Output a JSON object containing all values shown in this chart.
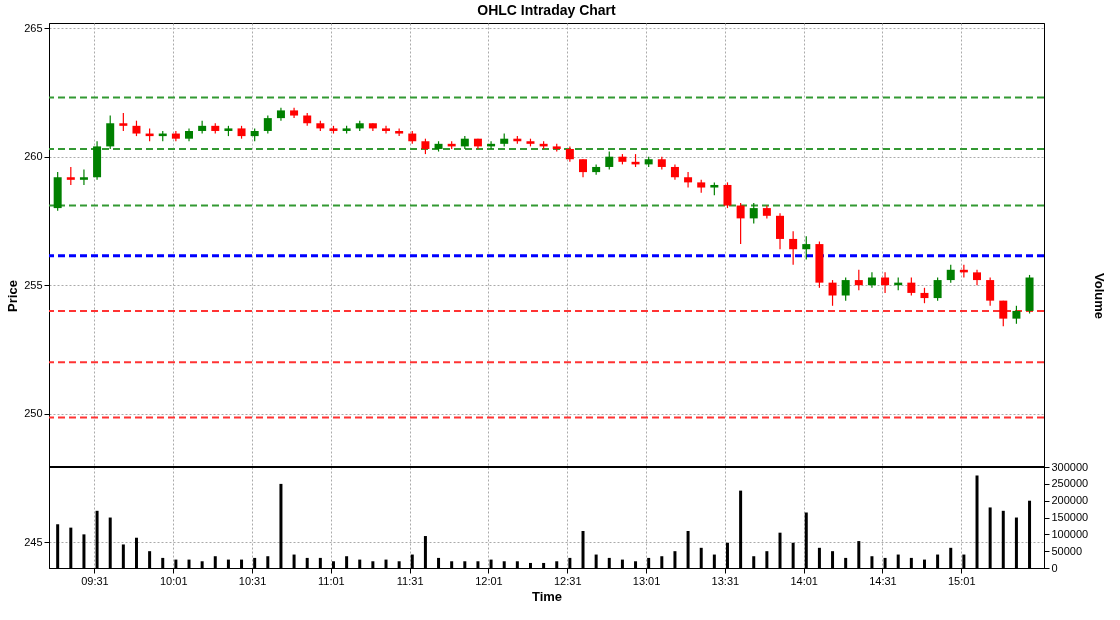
{
  "chart_data": {
    "type": "candlestick",
    "title": "OHLC Intraday Chart",
    "xlabel": "Time",
    "ylabel": "Price",
    "y2label": "Volume",
    "x": [
      9.2833,
      9.3667,
      9.45,
      9.5333,
      9.6167,
      9.7,
      9.7833,
      9.8667,
      9.95,
      10.0333,
      10.1167,
      10.2,
      10.2833,
      10.3667,
      10.45,
      10.5333,
      10.6167,
      10.7,
      10.7833,
      10.8667,
      10.95,
      11.0333,
      11.1167,
      11.2,
      11.2833,
      11.3667,
      11.45,
      11.5333,
      11.6167,
      11.7,
      11.7833,
      11.8667,
      11.95,
      12.0333,
      12.1167,
      12.2,
      12.2833,
      12.3667,
      12.45,
      12.5333,
      12.6167,
      12.7,
      12.7833,
      12.8667,
      12.95,
      13.0333,
      13.1167,
      13.2,
      13.2833,
      13.3667,
      13.45,
      13.5333,
      13.6167,
      13.7,
      13.7833,
      13.8667,
      13.95,
      14.0333,
      14.1167,
      14.2,
      14.2833,
      14.3667,
      14.45,
      14.5333,
      14.6167,
      14.7,
      14.7833,
      14.8667,
      14.95,
      15.0333,
      15.1167,
      15.2,
      15.2833,
      15.3667,
      15.45
    ],
    "ohlc": [
      [
        258.0,
        259.4,
        257.9,
        259.2
      ],
      [
        259.2,
        259.6,
        258.9,
        259.1
      ],
      [
        259.1,
        259.5,
        258.9,
        259.2
      ],
      [
        259.2,
        260.6,
        259.1,
        260.4
      ],
      [
        260.4,
        261.6,
        260.3,
        261.3
      ],
      [
        261.3,
        261.7,
        261.0,
        261.2
      ],
      [
        261.2,
        261.4,
        260.8,
        260.9
      ],
      [
        260.9,
        261.1,
        260.6,
        260.8
      ],
      [
        260.8,
        261.0,
        260.6,
        260.9
      ],
      [
        260.9,
        261.0,
        260.6,
        260.7
      ],
      [
        260.7,
        261.1,
        260.6,
        261.0
      ],
      [
        261.0,
        261.4,
        260.9,
        261.2
      ],
      [
        261.2,
        261.3,
        260.9,
        261.0
      ],
      [
        261.0,
        261.2,
        260.8,
        261.1
      ],
      [
        261.1,
        261.2,
        260.7,
        260.8
      ],
      [
        260.8,
        261.1,
        260.6,
        261.0
      ],
      [
        261.0,
        261.6,
        260.9,
        261.5
      ],
      [
        261.5,
        261.9,
        261.4,
        261.8
      ],
      [
        261.8,
        261.9,
        261.5,
        261.6
      ],
      [
        261.6,
        261.7,
        261.2,
        261.3
      ],
      [
        261.3,
        261.4,
        261.0,
        261.1
      ],
      [
        261.1,
        261.2,
        260.9,
        261.0
      ],
      [
        261.0,
        261.2,
        260.9,
        261.1
      ],
      [
        261.1,
        261.4,
        261.0,
        261.3
      ],
      [
        261.3,
        261.3,
        261.0,
        261.1
      ],
      [
        261.1,
        261.2,
        260.9,
        261.0
      ],
      [
        261.0,
        261.1,
        260.8,
        260.9
      ],
      [
        260.9,
        261.0,
        260.5,
        260.6
      ],
      [
        260.6,
        260.7,
        260.1,
        260.3
      ],
      [
        260.3,
        260.6,
        260.2,
        260.5
      ],
      [
        260.5,
        260.6,
        260.3,
        260.4
      ],
      [
        260.4,
        260.8,
        260.3,
        260.7
      ],
      [
        260.7,
        260.7,
        260.3,
        260.4
      ],
      [
        260.4,
        260.6,
        260.3,
        260.5
      ],
      [
        260.5,
        260.9,
        260.4,
        260.7
      ],
      [
        260.7,
        260.8,
        260.5,
        260.6
      ],
      [
        260.6,
        260.7,
        260.4,
        260.5
      ],
      [
        260.5,
        260.6,
        260.3,
        260.4
      ],
      [
        260.4,
        260.5,
        260.2,
        260.3
      ],
      [
        260.3,
        260.4,
        259.8,
        259.9
      ],
      [
        259.9,
        259.9,
        259.2,
        259.4
      ],
      [
        259.4,
        259.7,
        259.3,
        259.6
      ],
      [
        259.6,
        260.2,
        259.5,
        260.0
      ],
      [
        260.0,
        260.1,
        259.7,
        259.8
      ],
      [
        259.8,
        260.1,
        259.6,
        259.7
      ],
      [
        259.7,
        260.0,
        259.6,
        259.9
      ],
      [
        259.9,
        260.0,
        259.5,
        259.6
      ],
      [
        259.6,
        259.7,
        259.1,
        259.2
      ],
      [
        259.2,
        259.4,
        258.8,
        259.0
      ],
      [
        259.0,
        259.1,
        258.6,
        258.8
      ],
      [
        258.8,
        259.0,
        258.5,
        258.9
      ],
      [
        258.9,
        259.0,
        258.0,
        258.1
      ],
      [
        258.1,
        258.2,
        256.6,
        257.6
      ],
      [
        257.6,
        258.2,
        257.4,
        258.0
      ],
      [
        258.0,
        258.1,
        257.6,
        257.7
      ],
      [
        257.7,
        257.8,
        256.4,
        256.8
      ],
      [
        256.8,
        257.1,
        255.8,
        256.4
      ],
      [
        256.4,
        256.9,
        256.0,
        256.6
      ],
      [
        256.6,
        256.7,
        254.9,
        255.1
      ],
      [
        255.1,
        255.2,
        254.2,
        254.6
      ],
      [
        254.6,
        255.3,
        254.4,
        255.2
      ],
      [
        255.2,
        255.6,
        254.8,
        255.0
      ],
      [
        255.0,
        255.5,
        254.9,
        255.3
      ],
      [
        255.3,
        255.5,
        254.7,
        255.0
      ],
      [
        255.0,
        255.3,
        254.8,
        255.1
      ],
      [
        255.1,
        255.3,
        254.6,
        254.7
      ],
      [
        254.7,
        254.9,
        254.3,
        254.5
      ],
      [
        254.5,
        255.3,
        254.4,
        255.2
      ],
      [
        255.2,
        255.8,
        255.1,
        255.6
      ],
      [
        255.6,
        255.8,
        255.3,
        255.5
      ],
      [
        255.5,
        255.6,
        255.0,
        255.2
      ],
      [
        255.2,
        255.3,
        254.2,
        254.4
      ],
      [
        254.4,
        254.4,
        253.4,
        253.7
      ],
      [
        253.7,
        254.2,
        253.5,
        254.0
      ],
      [
        254.0,
        255.4,
        253.9,
        255.3
      ]
    ],
    "colors": [
      "#008000",
      "#ff0000",
      "#008000",
      "#008000",
      "#008000",
      "#ff0000",
      "#ff0000",
      "#ff0000",
      "#008000",
      "#ff0000",
      "#008000",
      "#008000",
      "#ff0000",
      "#008000",
      "#ff0000",
      "#008000",
      "#008000",
      "#008000",
      "#ff0000",
      "#ff0000",
      "#ff0000",
      "#ff0000",
      "#008000",
      "#008000",
      "#ff0000",
      "#ff0000",
      "#ff0000",
      "#ff0000",
      "#ff0000",
      "#008000",
      "#ff0000",
      "#008000",
      "#ff0000",
      "#008000",
      "#008000",
      "#ff0000",
      "#ff0000",
      "#ff0000",
      "#ff0000",
      "#ff0000",
      "#ff0000",
      "#008000",
      "#008000",
      "#ff0000",
      "#ff0000",
      "#008000",
      "#ff0000",
      "#ff0000",
      "#ff0000",
      "#ff0000",
      "#008000",
      "#ff0000",
      "#ff0000",
      "#008000",
      "#ff0000",
      "#ff0000",
      "#ff0000",
      "#008000",
      "#ff0000",
      "#ff0000",
      "#008000",
      "#ff0000",
      "#008000",
      "#ff0000",
      "#008000",
      "#ff0000",
      "#ff0000",
      "#008000",
      "#008000",
      "#ff0000",
      "#ff0000",
      "#ff0000",
      "#ff0000",
      "#008000",
      "#008000"
    ],
    "series": [
      {
        "type": "bar",
        "axis": "y2",
        "color": "#000000",
        "values": [
          130000,
          120000,
          100000,
          170000,
          150000,
          70000,
          90000,
          50000,
          30000,
          25000,
          25000,
          20000,
          35000,
          25000,
          25000,
          30000,
          35000,
          250000,
          40000,
          30000,
          30000,
          20000,
          35000,
          25000,
          20000,
          25000,
          20000,
          40000,
          95000,
          30000,
          20000,
          20000,
          20000,
          25000,
          20000,
          20000,
          15000,
          15000,
          20000,
          30000,
          110000,
          40000,
          30000,
          25000,
          20000,
          30000,
          35000,
          50000,
          110000,
          60000,
          40000,
          75000,
          230000,
          35000,
          50000,
          105000,
          75000,
          165000,
          60000,
          50000,
          30000,
          80000,
          35000,
          30000,
          40000,
          30000,
          25000,
          40000,
          60000,
          40000,
          275000,
          180000,
          170000,
          150000,
          200000
        ]
      }
    ],
    "xlim": [
      9.26,
      15.51
    ],
    "xticks": [
      {
        "value": 9.5167,
        "label": "09:31"
      },
      {
        "value": 10.0167,
        "label": "10:01"
      },
      {
        "value": 10.5167,
        "label": "10:31"
      },
      {
        "value": 11.0167,
        "label": "11:01"
      },
      {
        "value": 11.5167,
        "label": "11:31"
      },
      {
        "value": 12.0167,
        "label": "12:01"
      },
      {
        "value": 12.5167,
        "label": "12:31"
      },
      {
        "value": 13.0167,
        "label": "13:01"
      },
      {
        "value": 13.5167,
        "label": "13:31"
      },
      {
        "value": 14.0167,
        "label": "14:01"
      },
      {
        "value": 14.5167,
        "label": "14:31"
      },
      {
        "value": 15.0167,
        "label": "15:01"
      }
    ],
    "ylim": [
      244.0,
      265.2
    ],
    "yticks": [
      245,
      250,
      255,
      260,
      265
    ],
    "y2lim": [
      0,
      1620000
    ],
    "y2ticks": [
      0,
      50000,
      100000,
      150000,
      200000,
      250000,
      300000
    ],
    "grid": true,
    "ref_lines": [
      {
        "axis": "y",
        "value": 262.3,
        "color": "#339933",
        "line_style": "dashed"
      },
      {
        "axis": "y",
        "value": 260.3,
        "color": "#339933",
        "line_style": "dashed"
      },
      {
        "axis": "y",
        "value": 258.1,
        "color": "#339933",
        "line_style": "dashed"
      },
      {
        "axis": "y",
        "value": 256.15,
        "color": "#0000ff",
        "line_style": "dashed"
      },
      {
        "axis": "y",
        "value": 254.0,
        "color": "#ff3333",
        "line_style": "dashed"
      },
      {
        "axis": "y",
        "value": 252.0,
        "color": "#ff3333",
        "line_style": "dashed"
      },
      {
        "axis": "y",
        "value": 249.85,
        "color": "#ff3333",
        "line_style": "dashed"
      },
      {
        "axis": "y2",
        "value": 300000,
        "color": "#000000",
        "line_style": "solid"
      }
    ]
  }
}
